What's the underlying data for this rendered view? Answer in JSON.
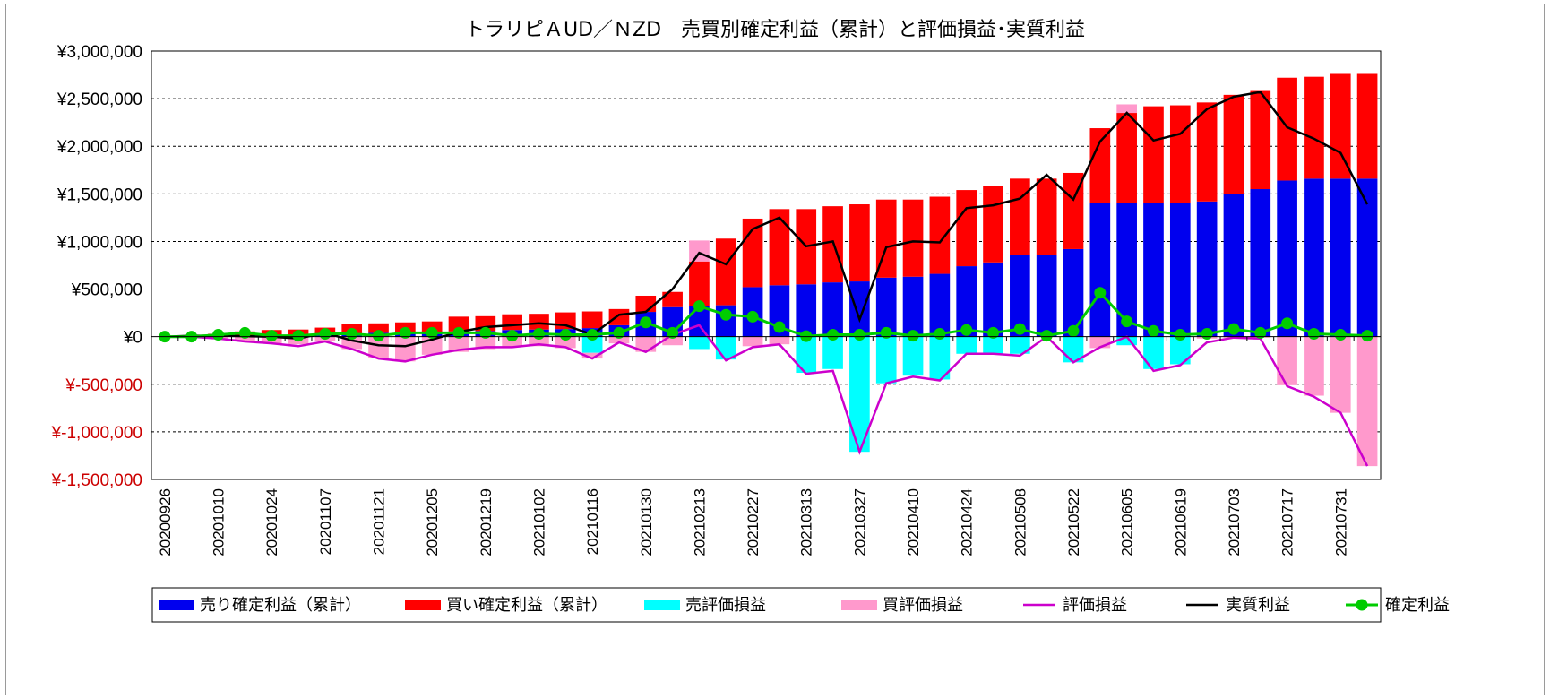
{
  "chart_data": {
    "type": "bar",
    "title": "トラリピＡUD／ＮZD　売買別確定利益（累計）と評価損益･実質利益",
    "ylim": [
      -1500000,
      3000000
    ],
    "y_ticks": [
      {
        "value": 3000000,
        "label": "¥3,000,000",
        "color": "#000000"
      },
      {
        "value": 2500000,
        "label": "¥2,500,000",
        "color": "#000000"
      },
      {
        "value": 2000000,
        "label": "¥2,000,000",
        "color": "#000000"
      },
      {
        "value": 1500000,
        "label": "¥1,500,000",
        "color": "#000000"
      },
      {
        "value": 1000000,
        "label": "¥1,000,000",
        "color": "#000000"
      },
      {
        "value": 500000,
        "label": "¥500,000",
        "color": "#000000"
      },
      {
        "value": 0,
        "label": "¥0",
        "color": "#000000"
      },
      {
        "value": -500000,
        "label": "¥-500,000",
        "color": "#cc0000"
      },
      {
        "value": -1000000,
        "label": "¥-1,000,000",
        "color": "#cc0000"
      },
      {
        "value": -1500000,
        "label": "¥-1,500,000",
        "color": "#cc0000"
      }
    ],
    "categories": [
      "20200926",
      "20201003",
      "20201010",
      "20201017",
      "20201024",
      "20201031",
      "20201107",
      "20201114",
      "20201121",
      "20201128",
      "20201205",
      "20201212",
      "20201219",
      "20201226",
      "20210102",
      "20210109",
      "20210116",
      "20210123",
      "20210130",
      "20210206",
      "20210213",
      "20210220",
      "20210227",
      "20210306",
      "20210313",
      "20210320",
      "20210327",
      "20210403",
      "20210410",
      "20210417",
      "20210424",
      "20210501",
      "20210508",
      "20210515",
      "20210522",
      "20210529",
      "20210605",
      "20210612",
      "20210619",
      "20210626",
      "20210703",
      "20210710",
      "20210717",
      "20210724",
      "20210731",
      "20210807"
    ],
    "x_tick_labels": [
      "20200926",
      "20201010",
      "20201024",
      "20201107",
      "20201121",
      "20201205",
      "20201219",
      "20210102",
      "20210116",
      "20210130",
      "20210213",
      "20210227",
      "20210313",
      "20210327",
      "20210410",
      "20210424",
      "20210508",
      "20210522",
      "20210605",
      "20210619",
      "20210703",
      "20210717",
      "20210731"
    ],
    "series": [
      {
        "name": "売り確定利益（累計）",
        "kind": "stacked-bar",
        "color": "#0000ee",
        "values": [
          0,
          0,
          10000,
          15000,
          20000,
          20000,
          30000,
          35000,
          40000,
          45000,
          50000,
          55000,
          60000,
          70000,
          75000,
          80000,
          90000,
          120000,
          260000,
          310000,
          320000,
          330000,
          520000,
          540000,
          550000,
          570000,
          580000,
          620000,
          630000,
          660000,
          740000,
          780000,
          860000,
          860000,
          920000,
          1400000,
          1400000,
          1400000,
          1400000,
          1420000,
          1500000,
          1550000,
          1640000,
          1660000,
          1660000,
          1660000
        ]
      },
      {
        "name": "買い確定利益（累計）",
        "kind": "stacked-bar",
        "color": "#ff0000",
        "values": [
          0,
          10000,
          20000,
          40000,
          50000,
          55000,
          65000,
          95000,
          100000,
          105000,
          110000,
          155000,
          155000,
          165000,
          165000,
          175000,
          175000,
          170000,
          170000,
          160000,
          470000,
          700000,
          720000,
          800000,
          790000,
          800000,
          810000,
          820000,
          810000,
          810000,
          800000,
          800000,
          800000,
          800000,
          800000,
          790000,
          950000,
          1020000,
          1030000,
          1040000,
          1040000,
          1040000,
          1080000,
          1070000,
          1100000,
          1100000
        ]
      },
      {
        "name": "売評価損益",
        "kind": "stacked-bar",
        "color": "#00ffff",
        "values": [
          0,
          0,
          0,
          0,
          0,
          0,
          0,
          0,
          0,
          0,
          0,
          0,
          0,
          0,
          0,
          0,
          -170000,
          0,
          0,
          0,
          -130000,
          -240000,
          0,
          0,
          -380000,
          -340000,
          -1210000,
          -490000,
          -410000,
          -450000,
          -180000,
          -180000,
          -180000,
          0,
          -270000,
          0,
          -90000,
          -340000,
          -290000,
          0,
          0,
          0,
          0,
          0,
          0,
          0
        ]
      },
      {
        "name": "買評価損益",
        "kind": "stacked-bar",
        "color": "#ff99cc",
        "values": [
          0,
          0,
          -20000,
          -50000,
          -70000,
          -80000,
          -50000,
          -130000,
          -220000,
          -260000,
          -190000,
          -160000,
          -130000,
          -110000,
          -100000,
          -120000,
          -60000,
          -70000,
          -160000,
          -90000,
          220000,
          0,
          -100000,
          -80000,
          0,
          0,
          0,
          0,
          0,
          0,
          0,
          0,
          0,
          0,
          0,
          -120000,
          90000,
          0,
          0,
          -20000,
          -10000,
          -10000,
          -510000,
          -620000,
          -800000,
          -1360000
        ]
      },
      {
        "name": "評価損益",
        "kind": "line",
        "color": "#cc00cc",
        "values": [
          0,
          0,
          -20000,
          -50000,
          -70000,
          -100000,
          -50000,
          -130000,
          -230000,
          -260000,
          -190000,
          -140000,
          -110000,
          -110000,
          -80000,
          -110000,
          -230000,
          -60000,
          -160000,
          20000,
          120000,
          -250000,
          -110000,
          -80000,
          -390000,
          -360000,
          -1210000,
          -490000,
          -420000,
          -460000,
          -180000,
          -180000,
          -200000,
          0,
          -270000,
          -110000,
          0,
          -360000,
          -300000,
          -60000,
          -10000,
          -20000,
          -520000,
          -630000,
          -800000,
          -1360000
        ]
      },
      {
        "name": "実質利益",
        "kind": "line",
        "color": "#000000",
        "values": [
          0,
          10000,
          10000,
          5000,
          0,
          -20000,
          40000,
          -40000,
          -90000,
          -100000,
          -30000,
          50000,
          100000,
          120000,
          140000,
          120000,
          20000,
          230000,
          260000,
          500000,
          880000,
          760000,
          1130000,
          1250000,
          950000,
          1000000,
          180000,
          940000,
          1000000,
          990000,
          1350000,
          1380000,
          1450000,
          1700000,
          1440000,
          2050000,
          2350000,
          2060000,
          2130000,
          2390000,
          2520000,
          2570000,
          2200000,
          2080000,
          1930000,
          1390000
        ]
      },
      {
        "name": "確定利益",
        "kind": "line-markers",
        "color": "#00cc00",
        "values": [
          0,
          0,
          20000,
          40000,
          10000,
          10000,
          30000,
          30000,
          10000,
          40000,
          40000,
          40000,
          40000,
          10000,
          30000,
          20000,
          20000,
          40000,
          150000,
          40000,
          320000,
          230000,
          210000,
          100000,
          5000,
          20000,
          20000,
          40000,
          10000,
          30000,
          70000,
          40000,
          80000,
          10000,
          60000,
          460000,
          160000,
          60000,
          20000,
          30000,
          80000,
          40000,
          140000,
          30000,
          20000,
          10000
        ]
      }
    ]
  }
}
